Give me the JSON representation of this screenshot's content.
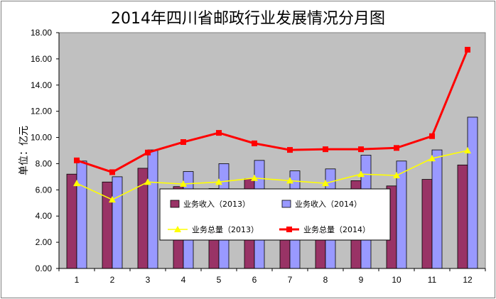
{
  "chart_data": {
    "type": "bar",
    "title": "2014年四川省邮政行业发展情况分月图",
    "ylabel": "单位：亿元",
    "xlabel": "",
    "categories": [
      "1",
      "2",
      "3",
      "4",
      "5",
      "6",
      "7",
      "8",
      "9",
      "10",
      "11",
      "12"
    ],
    "ylim": [
      0,
      18
    ],
    "yticks": [
      "0.00",
      "2.00",
      "4.00",
      "6.00",
      "8.00",
      "10.00",
      "12.00",
      "14.00",
      "16.00",
      "18.00"
    ],
    "series": [
      {
        "name": "业务收入（2013）",
        "kind": "bar",
        "color": "#993366",
        "values": [
          7.2,
          6.6,
          7.65,
          6.25,
          6.1,
          6.85,
          6.0,
          6.0,
          6.7,
          6.3,
          6.8,
          7.9
        ]
      },
      {
        "name": "业务收入（2014）",
        "kind": "bar",
        "color": "#9999ff",
        "values": [
          8.2,
          7.0,
          9.05,
          7.4,
          8.0,
          8.25,
          7.45,
          7.6,
          8.65,
          8.2,
          9.05,
          11.55
        ]
      },
      {
        "name": "业务总量（2013）",
        "kind": "line",
        "color": "#ffff00",
        "values": [
          6.5,
          5.25,
          6.6,
          6.45,
          6.6,
          6.9,
          6.7,
          6.5,
          7.2,
          7.1,
          8.4,
          9.0
        ]
      },
      {
        "name": "业务总量（2014）",
        "kind": "line",
        "color": "#ff0000",
        "values": [
          8.25,
          7.35,
          8.85,
          9.65,
          10.35,
          9.55,
          9.05,
          9.1,
          9.1,
          9.2,
          10.1,
          16.7
        ]
      }
    ],
    "grid": false,
    "legend_position": "center"
  }
}
